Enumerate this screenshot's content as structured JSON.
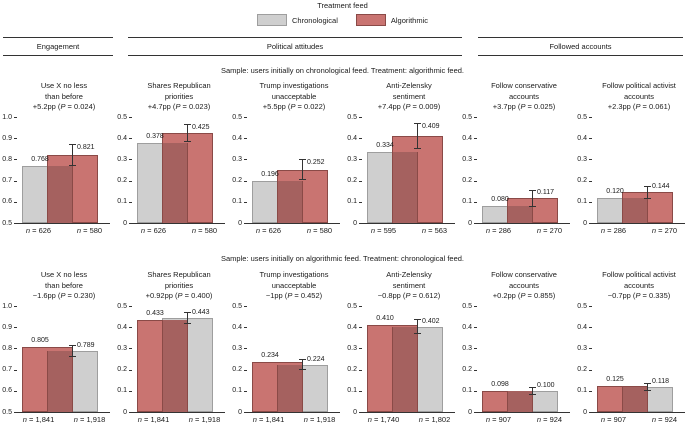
{
  "legend": {
    "title": "Treatment feed",
    "items": [
      {
        "label": "Chronological",
        "color": "#cfcfcf",
        "border": "#9e9e9e"
      },
      {
        "label": "Algorithmic",
        "color": "#c97471",
        "border": "#8a4a47"
      }
    ]
  },
  "sections": [
    {
      "label": "Engagement"
    },
    {
      "label": "Political attitudes"
    },
    {
      "label": "Followed accounts"
    }
  ],
  "colors": {
    "chronological_fill": "#cfcfcf",
    "chronological_border": "#9e9e9e",
    "algorithmic_fill": "#c97471",
    "algorithmic_border": "#8a4a47",
    "overlap_fill": "#a5615f",
    "axis": "#333333",
    "error_bar": "#333333",
    "text": "#1a1a1a"
  },
  "chart_data": {
    "type": "bar",
    "grid": false,
    "legend_position": "top",
    "rows": [
      {
        "sample_label": "Sample: users initially on chronological feed. Treatment: algorithmic feed.",
        "panels": [
          {
            "section": "Engagement",
            "title_lines": [
              "Use X no less",
              "than before"
            ],
            "effect": "+5.2pp (P = 0.024)",
            "ylim": [
              0.5,
              1.0
            ],
            "yticks": [
              "1.0",
              "0.9",
              "0.8",
              "0.7",
              "0.6",
              "0.5"
            ],
            "bars": [
              {
                "treatment": "Chronological",
                "value": 0.768,
                "label": "0.768",
                "n": "626"
              },
              {
                "treatment": "Algorithmic",
                "value": 0.821,
                "label": "0.821",
                "n": "580",
                "ci": [
                  0.775,
                  0.867
                ]
              }
            ]
          },
          {
            "section": "Political attitudes",
            "title_lines": [
              "Shares Republican",
              "priorities"
            ],
            "effect": "+4.7pp (P = 0.023)",
            "ylim": [
              0,
              0.5
            ],
            "yticks": [
              "0.5",
              "0.4",
              "0.3",
              "0.2",
              "0.1",
              "0"
            ],
            "bars": [
              {
                "treatment": "Chronological",
                "value": 0.378,
                "label": "0.378",
                "n": "626"
              },
              {
                "treatment": "Algorithmic",
                "value": 0.425,
                "label": "0.425",
                "n": "580",
                "ci": [
                  0.386,
                  0.464
                ]
              }
            ]
          },
          {
            "section": "Political attitudes",
            "title_lines": [
              "Trump investigations",
              "unacceptable"
            ],
            "effect": "+5.5pp (P = 0.022)",
            "ylim": [
              0,
              0.5
            ],
            "yticks": [
              "0.5",
              "0.4",
              "0.3",
              "0.2",
              "0.1",
              "0"
            ],
            "bars": [
              {
                "treatment": "Chronological",
                "value": 0.196,
                "label": "0.196",
                "n": "626"
              },
              {
                "treatment": "Algorithmic",
                "value": 0.252,
                "label": "0.252",
                "n": "580",
                "ci": [
                  0.206,
                  0.298
                ]
              }
            ]
          },
          {
            "section": "Political attitudes",
            "title_lines": [
              "Anti-Zelensky",
              "sentiment"
            ],
            "effect": "+7.4pp (P = 0.009)",
            "ylim": [
              0,
              0.5
            ],
            "yticks": [
              "0.5",
              "0.4",
              "0.3",
              "0.2",
              "0.1",
              "0"
            ],
            "bars": [
              {
                "treatment": "Chronological",
                "value": 0.334,
                "label": "0.334",
                "n": "595"
              },
              {
                "treatment": "Algorithmic",
                "value": 0.409,
                "label": "0.409",
                "n": "563",
                "ci": [
                  0.353,
                  0.465
                ]
              }
            ]
          },
          {
            "section": "Followed accounts",
            "title_lines": [
              "Follow conservative",
              "accounts"
            ],
            "effect": "+3.7pp (P = 0.025)",
            "ylim": [
              0,
              0.5
            ],
            "yticks": [
              "0.5",
              "0.4",
              "0.3",
              "0.2",
              "0.1",
              "0"
            ],
            "bars": [
              {
                "treatment": "Chronological",
                "value": 0.08,
                "label": "0.080",
                "n": "286"
              },
              {
                "treatment": "Algorithmic",
                "value": 0.117,
                "label": "0.117",
                "n": "270",
                "ci": [
                  0.082,
                  0.152
                ]
              }
            ]
          },
          {
            "section": "Followed accounts",
            "title_lines": [
              "Follow political activist",
              "accounts"
            ],
            "effect": "+2.3pp (P = 0.061)",
            "ylim": [
              0,
              0.5
            ],
            "yticks": [
              "0.5",
              "0.4",
              "0.3",
              "0.2",
              "0.1",
              "0"
            ],
            "bars": [
              {
                "treatment": "Chronological",
                "value": 0.12,
                "label": "0.120",
                "n": "286"
              },
              {
                "treatment": "Algorithmic",
                "value": 0.144,
                "label": "0.144",
                "n": "270",
                "ci": [
                  0.117,
                  0.171
                ]
              }
            ]
          }
        ]
      },
      {
        "sample_label": "Sample: users initially on algorithmic feed. Treatment: chronological feed.",
        "panels": [
          {
            "section": "Engagement",
            "title_lines": [
              "Use X no less",
              "than before"
            ],
            "effect": "−1.6pp (P = 0.230)",
            "ylim": [
              0.5,
              1.0
            ],
            "yticks": [
              "1.0",
              "0.9",
              "0.8",
              "0.7",
              "0.6",
              "0.5"
            ],
            "bars": [
              {
                "treatment": "Algorithmic",
                "value": 0.805,
                "label": "0.805",
                "n": "1,841"
              },
              {
                "treatment": "Chronological",
                "value": 0.789,
                "label": "0.789",
                "n": "1,918",
                "ci": [
                  0.765,
                  0.813
                ]
              }
            ]
          },
          {
            "section": "Political attitudes",
            "title_lines": [
              "Shares Republican",
              "priorities"
            ],
            "effect": "+0.92pp (P = 0.400)",
            "ylim": [
              0,
              0.5
            ],
            "yticks": [
              "0.5",
              "0.4",
              "0.3",
              "0.2",
              "0.1",
              "0"
            ],
            "bars": [
              {
                "treatment": "Algorithmic",
                "value": 0.433,
                "label": "0.433",
                "n": "1,841"
              },
              {
                "treatment": "Chronological",
                "value": 0.443,
                "label": "0.443",
                "n": "1,918",
                "ci": [
                  0.421,
                  0.465
                ]
              }
            ]
          },
          {
            "section": "Political attitudes",
            "title_lines": [
              "Trump investigations",
              "unacceptable"
            ],
            "effect": "−1pp (P = 0.452)",
            "ylim": [
              0,
              0.5
            ],
            "yticks": [
              "0.5",
              "0.4",
              "0.3",
              "0.2",
              "0.1",
              "0"
            ],
            "bars": [
              {
                "treatment": "Algorithmic",
                "value": 0.234,
                "label": "0.234",
                "n": "1,841"
              },
              {
                "treatment": "Chronological",
                "value": 0.224,
                "label": "0.224",
                "n": "1,918",
                "ci": [
                  0.201,
                  0.247
                ]
              }
            ]
          },
          {
            "section": "Political attitudes",
            "title_lines": [
              "Anti-Zelensky",
              "sentiment"
            ],
            "effect": "−0.8pp (P = 0.612)",
            "ylim": [
              0,
              0.5
            ],
            "yticks": [
              "0.5",
              "0.4",
              "0.3",
              "0.2",
              "0.1",
              "0"
            ],
            "bars": [
              {
                "treatment": "Algorithmic",
                "value": 0.41,
                "label": "0.410",
                "n": "1,740"
              },
              {
                "treatment": "Chronological",
                "value": 0.402,
                "label": "0.402",
                "n": "1,802",
                "ci": [
                  0.371,
                  0.433
                ]
              }
            ]
          },
          {
            "section": "Followed accounts",
            "title_lines": [
              "Follow conservative",
              "accounts"
            ],
            "effect": "+0.2pp (P = 0.855)",
            "ylim": [
              0,
              0.5
            ],
            "yticks": [
              "0.5",
              "0.4",
              "0.3",
              "0.2",
              "0.1",
              "0"
            ],
            "bars": [
              {
                "treatment": "Algorithmic",
                "value": 0.098,
                "label": "0.098",
                "n": "907"
              },
              {
                "treatment": "Chronological",
                "value": 0.1,
                "label": "0.100",
                "n": "924",
                "ci": [
                  0.085,
                  0.115
                ]
              }
            ]
          },
          {
            "section": "Followed accounts",
            "title_lines": [
              "Follow political activist",
              "accounts"
            ],
            "effect": "−0.7pp (P = 0.335)",
            "ylim": [
              0,
              0.5
            ],
            "yticks": [
              "0.5",
              "0.4",
              "0.3",
              "0.2",
              "0.1",
              "0"
            ],
            "bars": [
              {
                "treatment": "Algorithmic",
                "value": 0.125,
                "label": "0.125",
                "n": "907"
              },
              {
                "treatment": "Chronological",
                "value": 0.118,
                "label": "0.118",
                "n": "924",
                "ci": [
                  0.102,
                  0.134
                ]
              }
            ]
          }
        ]
      }
    ]
  }
}
